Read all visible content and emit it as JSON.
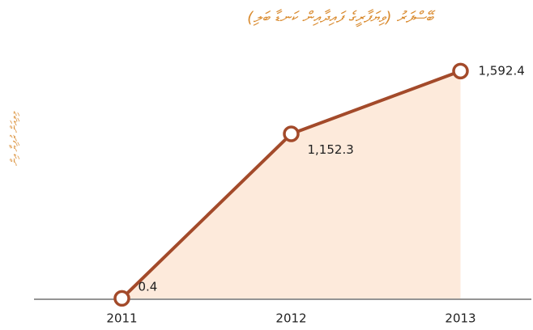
{
  "chart_data": {
    "type": "line",
    "title": "ބޭސްފަރު (ވިޔަފާރީގެ ފައިދާއިން ކަނޑާ ބަލި)",
    "y_label": "މިލިއަން ރުފިޔާ އިން",
    "categories": [
      "2011",
      "2012",
      "2013"
    ],
    "values": [
      0.4,
      1152.3,
      1592.4
    ],
    "value_labels": [
      "0.4",
      "1,152.3",
      "1,592.4"
    ],
    "color": "#a34a2a",
    "area_color": "#fdeadb",
    "ylim": [
      0,
      1750
    ]
  }
}
